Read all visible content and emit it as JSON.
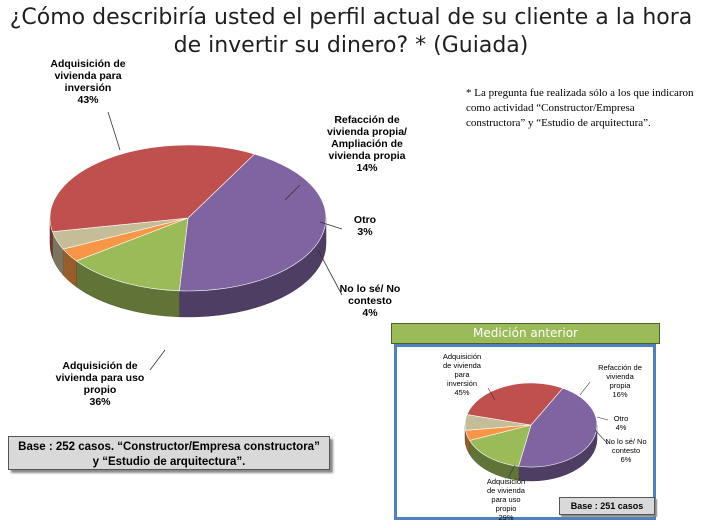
{
  "title_line1": "¿Cómo describiría usted el perfil actual de su cliente a la hora",
  "title_line2": "de invertir su dinero? * (Guiada)",
  "note": "* La pregunta fue realizada sólo a los que indicaron como actividad “Constructor/Empresa constructora” y “Estudio de arquitectura”.",
  "base_line1": "Base : 252 casos. “Constructor/Empresa constructora”",
  "base_line2": "y “Estudio de arquitectura”.",
  "chart_data": [
    {
      "type": "pie",
      "title": "",
      "series": [
        {
          "name": "",
          "values": [
            43,
            14,
            3,
            4,
            36
          ]
        }
      ],
      "categories": [
        "Adquisición de vivienda para inversión",
        "Refacción de vivienda propia/ Ampliación de vivienda propia",
        "Otro",
        "No lo sé/ No contesto",
        "Adquisición de vivienda para uso propio"
      ],
      "labels": [
        {
          "lines": [
            "Adquisición de",
            "vivienda para",
            "inversión",
            "43%"
          ]
        },
        {
          "lines": [
            "Refacción de",
            "vivienda propia/",
            "Ampliación de",
            "vivienda propia",
            "14%"
          ]
        },
        {
          "lines": [
            "Otro",
            "3%"
          ]
        },
        {
          "lines": [
            "No lo sé/ No",
            "contesto",
            "4%"
          ]
        },
        {
          "lines": [
            "Adquisición de",
            "vivienda para uso",
            "propio",
            "36%"
          ]
        }
      ],
      "colors": [
        "#8064a2",
        "#9bbb59",
        "#f79646",
        "#c4bd97",
        "#c0504d"
      ]
    },
    {
      "type": "pie",
      "title": "Medición anterior",
      "series": [
        {
          "name": "",
          "values": [
            45,
            16,
            4,
            6,
            29
          ]
        }
      ],
      "categories": [
        "Adquisición de vivienda para inversión",
        "Refacción de vivienda propia",
        "Otro",
        "No lo sé/ No contesto",
        "Adquisición de vivienda para uso propio"
      ],
      "labels": [
        {
          "lines": [
            "Adquisición",
            "de vivienda",
            "para",
            "inversión",
            "45%"
          ]
        },
        {
          "lines": [
            "Refacción de",
            "vivienda",
            "propia",
            "16%"
          ]
        },
        {
          "lines": [
            "Otro",
            "4%"
          ]
        },
        {
          "lines": [
            "No lo sé/ No",
            "contesto",
            "6%"
          ]
        },
        {
          "lines": [
            "Adquisición",
            "de vivienda",
            "para uso",
            "propio",
            "29%"
          ]
        }
      ],
      "colors": [
        "#8064a2",
        "#9bbb59",
        "#f79646",
        "#c4bd97",
        "#c0504d"
      ],
      "base": "Base : 251 casos"
    }
  ]
}
